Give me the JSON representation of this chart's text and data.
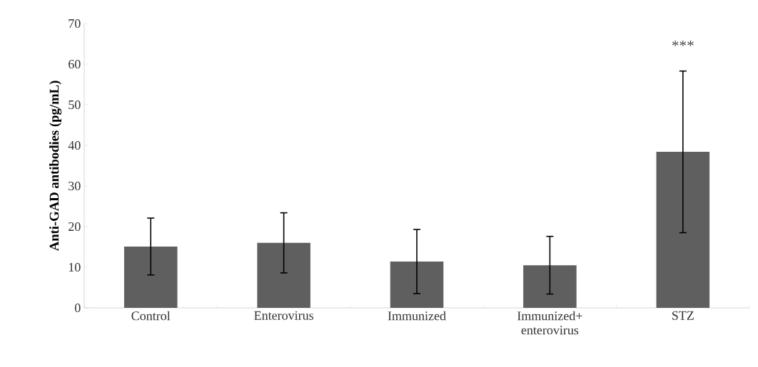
{
  "chart_data": {
    "type": "bar",
    "ylabel": "Anti-GAD antibodies (pg/mL)",
    "categories": [
      "Control",
      "Enterovirus",
      "Immunized",
      "Immunized+ enterovirus",
      "STZ"
    ],
    "values": [
      15.1,
      16.0,
      11.4,
      10.5,
      38.4
    ],
    "errors": [
      7.0,
      7.4,
      7.9,
      7.1,
      19.9
    ],
    "color": "#5f5f5f",
    "ylim": [
      0,
      70
    ],
    "yticks": [
      0,
      10,
      20,
      30,
      40,
      50,
      60,
      70
    ],
    "annotations": [
      "***"
    ]
  }
}
